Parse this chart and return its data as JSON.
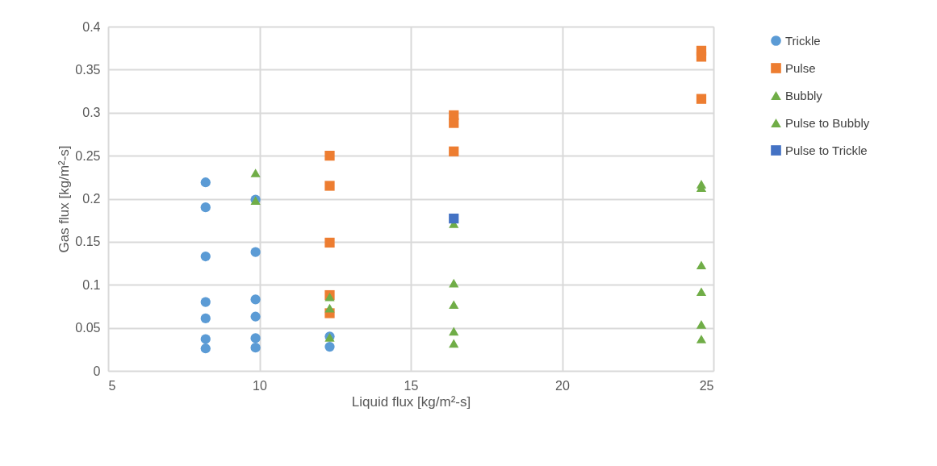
{
  "chart_data": {
    "type": "scatter",
    "xlabel": "Liquid flux [kg/m²-s]",
    "ylabel": "Gas flux [kg/m²-s]",
    "xlim": [
      5,
      25
    ],
    "xticks": [
      5,
      10,
      15,
      20,
      25
    ],
    "ylim": [
      0,
      0.4
    ],
    "yticks": [
      0,
      0.05,
      0.1,
      0.15,
      0.2,
      0.25,
      0.3,
      0.35,
      0.4
    ],
    "grid": true,
    "legend": "right",
    "series": [
      {
        "name": "Trickle",
        "color": "#5b9bd5",
        "marker": "circle",
        "x": [
          8.22,
          8.22,
          8.22,
          8.22,
          8.22,
          8.22,
          8.22,
          9.87,
          9.87,
          9.87,
          9.87,
          9.87,
          9.87,
          12.32,
          12.32
        ],
        "values": [
          0.219,
          0.19,
          0.133,
          0.08,
          0.061,
          0.037,
          0.026,
          0.199,
          0.138,
          0.083,
          0.063,
          0.038,
          0.027,
          0.04,
          0.028
        ]
      },
      {
        "name": "Pulse",
        "color": "#ed7d31",
        "marker": "square",
        "x": [
          12.32,
          12.32,
          12.32,
          12.32,
          12.32,
          16.42,
          16.42,
          16.42,
          24.6,
          24.6,
          24.6
        ],
        "values": [
          0.25,
          0.215,
          0.149,
          0.088,
          0.067,
          0.297,
          0.288,
          0.255,
          0.372,
          0.365,
          0.316
        ]
      },
      {
        "name": "Bubbly",
        "color": "#70ad47",
        "marker": "triangle",
        "x": [
          12.32,
          12.32,
          16.42,
          16.42,
          16.42,
          16.42,
          16.42,
          24.6,
          24.6,
          24.6,
          24.6,
          24.6,
          24.6
        ],
        "values": [
          0.086,
          0.073,
          0.171,
          0.102,
          0.077,
          0.046,
          0.032,
          0.217,
          0.213,
          0.123,
          0.092,
          0.054,
          0.037
        ]
      },
      {
        "name": "Pulse to Bubbly",
        "color": "#70ad47",
        "marker": "triangle",
        "x": [
          9.87,
          9.87,
          12.32
        ],
        "values": [
          0.23,
          0.198,
          0.039
        ]
      },
      {
        "name": "Pulse to Trickle",
        "color": "#4472c4",
        "marker": "square",
        "x": [
          16.42
        ],
        "values": [
          0.177
        ]
      }
    ]
  }
}
